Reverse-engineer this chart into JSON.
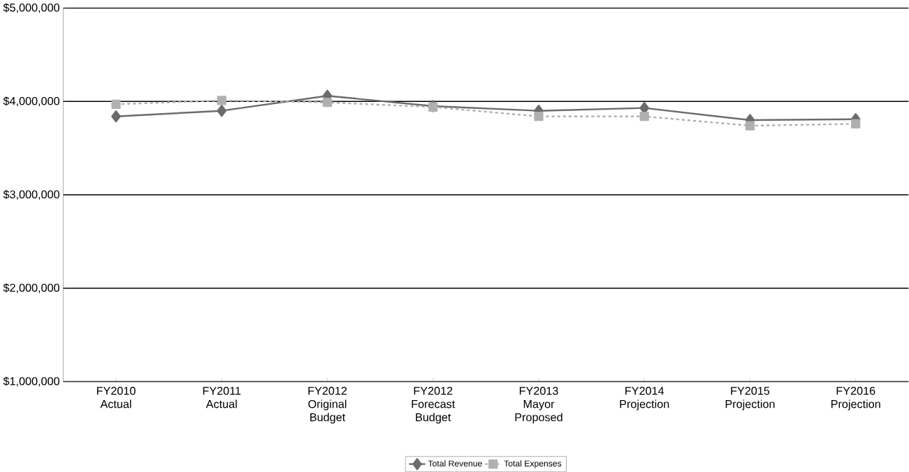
{
  "chart_data": {
    "type": "line",
    "categories": [
      "FY2010\nActual",
      "FY2011\nActual",
      "FY2012\nOriginal\nBudget",
      "FY2012\nForecast\nBudget",
      "FY2013\nMayor\nProposed",
      "FY2014\nProjection",
      "FY2015\nProjection",
      "FY2016\nProjection"
    ],
    "series": [
      {
        "name": "Total Revenue",
        "color": "#6b6b6b",
        "marker": "diamond",
        "line_style": "solid",
        "values": [
          3840000,
          3900000,
          4060000,
          3950000,
          3900000,
          3930000,
          3800000,
          3810000
        ]
      },
      {
        "name": "Total Expenses",
        "color": "#b0b0b0",
        "marker": "square",
        "line_style": "dashed",
        "values": [
          3970000,
          4010000,
          3990000,
          3940000,
          3840000,
          3840000,
          3740000,
          3760000
        ]
      }
    ],
    "ylim": [
      1000000,
      5000000
    ],
    "yticks": [
      {
        "value": 1000000,
        "label": "$1,000,000"
      },
      {
        "value": 2000000,
        "label": "$2,000,000"
      },
      {
        "value": 3000000,
        "label": "$3,000,000"
      },
      {
        "value": 4000000,
        "label": "$4,000,000"
      },
      {
        "value": 5000000,
        "label": "$5,000,000"
      }
    ],
    "grid": "y",
    "legend": "bottom"
  }
}
